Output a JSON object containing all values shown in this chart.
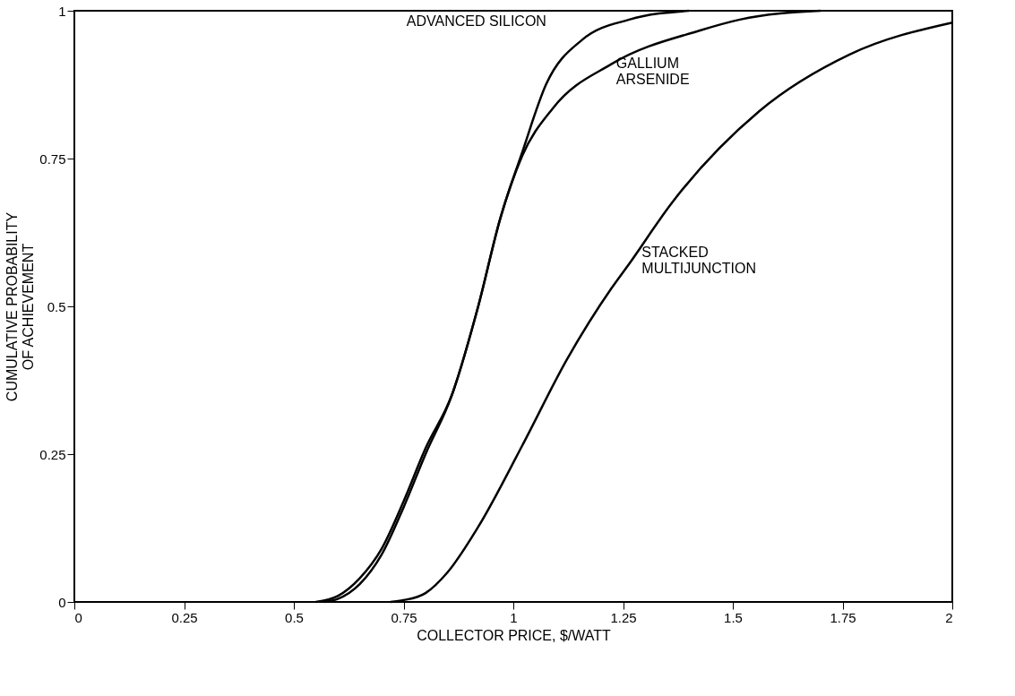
{
  "chart_data": {
    "type": "line",
    "xlabel": "COLLECTOR PRICE, $/WATT",
    "ylabel": "CUMULATIVE PROBABILITY\nOF ACHIEVEMENT",
    "xlim": [
      0,
      2
    ],
    "ylim": [
      0,
      1
    ],
    "xticks": [
      0,
      0.25,
      0.5,
      0.75,
      1,
      1.25,
      1.5,
      1.75,
      2
    ],
    "yticks": [
      0,
      0.25,
      0.5,
      0.75,
      1
    ],
    "grid": false,
    "marker": "none",
    "line_style": "solid",
    "series": [
      {
        "name": "ADVANCED SILICON",
        "color": "#000000",
        "x": [
          0.55,
          0.6,
          0.65,
          0.7,
          0.75,
          0.8,
          0.86,
          0.92,
          0.97,
          1.02,
          1.075,
          1.157,
          1.264,
          1.4
        ],
        "values": [
          0,
          0.01,
          0.04,
          0.09,
          0.17,
          0.26,
          0.35,
          0.5,
          0.648,
          0.76,
          0.876,
          0.951,
          0.985,
          1
        ]
      },
      {
        "name": "GALLIUM ARSENIDE",
        "color": "#000000",
        "x": [
          0.57,
          0.6,
          0.65,
          0.7,
          0.75,
          0.8,
          0.86,
          0.92,
          0.97,
          1.02,
          1.09,
          1.224,
          1.427,
          1.516,
          1.7
        ],
        "values": [
          0,
          0.005,
          0.03,
          0.08,
          0.16,
          0.25,
          0.35,
          0.5,
          0.648,
          0.754,
          0.835,
          0.91,
          0.967,
          0.985,
          1
        ]
      },
      {
        "name": "STACKED MULTIJUNCTION",
        "color": "#000000",
        "x": [
          0.72,
          0.75,
          0.8,
          0.85,
          0.92,
          1.02,
          1.122,
          1.224,
          1.264,
          1.36,
          1.56,
          1.766,
          2
        ],
        "values": [
          0,
          0.003,
          0.015,
          0.05,
          0.127,
          0.264,
          0.41,
          0.531,
          0.572,
          0.674,
          0.83,
          0.926,
          0.98
        ]
      }
    ]
  }
}
